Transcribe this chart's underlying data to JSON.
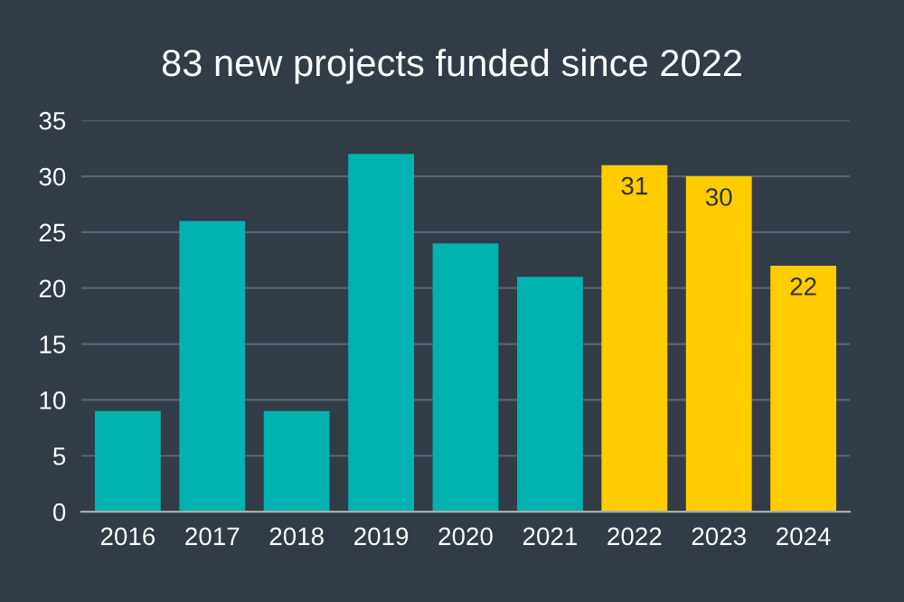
{
  "chart_data": {
    "type": "bar",
    "title": "83 new projects funded since 2022",
    "categories": [
      "2016",
      "2017",
      "2018",
      "2019",
      "2020",
      "2021",
      "2022",
      "2023",
      "2024"
    ],
    "values": [
      9,
      26,
      9,
      32,
      24,
      21,
      31,
      30,
      22
    ],
    "colors": [
      "#00b2b0",
      "#00b2b0",
      "#00b2b0",
      "#00b2b0",
      "#00b2b0",
      "#00b2b0",
      "#ffcc00",
      "#ffcc00",
      "#ffcc00"
    ],
    "value_labels": [
      null,
      null,
      null,
      null,
      null,
      null,
      "31",
      "30",
      "22"
    ],
    "ylim": [
      0,
      35
    ],
    "yticks": [
      0,
      5,
      10,
      15,
      20,
      25,
      30,
      35
    ],
    "grid": "y"
  }
}
